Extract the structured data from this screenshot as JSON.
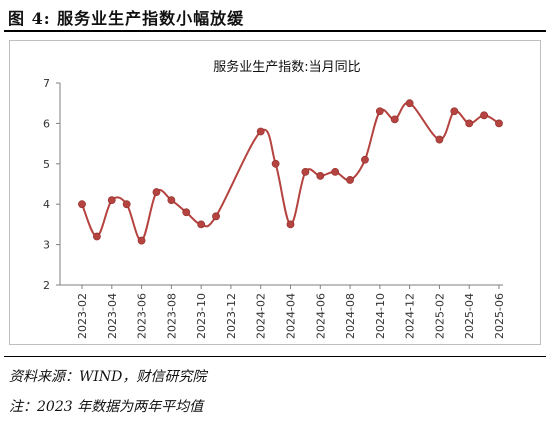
{
  "figure": {
    "title": "图 4:  服务业生产指数小幅放缓",
    "source": "资料来源：WIND，财信研究院",
    "note": "注：2023 年数据为两年平均值"
  },
  "chart_data": {
    "type": "line",
    "title": "服务业生产指数:当月同比",
    "xlabel": "",
    "ylabel": "",
    "ylim": [
      2,
      7
    ],
    "yticks": [
      2,
      3,
      4,
      5,
      6,
      7
    ],
    "grid": false,
    "legend": "none",
    "line_color": "#b5433f",
    "marker_color": "#b5433f",
    "x": [
      "2023-02",
      "2023-03",
      "2023-04",
      "2023-05",
      "2023-06",
      "2023-07",
      "2023-08",
      "2023-09",
      "2023-10",
      "2023-11",
      "2023-12",
      "2024-01",
      "2024-02",
      "2024-03",
      "2024-04",
      "2024-05",
      "2024-06",
      "2024-07",
      "2024-08",
      "2024-09",
      "2024-10",
      "2024-11",
      "2024-12",
      "2025-01",
      "2025-02",
      "2025-03",
      "2025-04",
      "2025-05",
      "2025-06"
    ],
    "xtick_labels": [
      "2023-02",
      "2023-04",
      "2023-06",
      "2023-08",
      "2023-10",
      "2023-12",
      "2024-02",
      "2024-04",
      "2024-06",
      "2024-08",
      "2024-10",
      "2024-12",
      "2025-02",
      "2025-04",
      "2025-06"
    ],
    "series": [
      {
        "points": [
          {
            "x": "2023-02",
            "y": 4.0
          },
          {
            "x": "2023-03",
            "y": 3.2
          },
          {
            "x": "2023-04",
            "y": 4.1
          },
          {
            "x": "2023-05",
            "y": 4.0
          },
          {
            "x": "2023-06",
            "y": 3.1
          },
          {
            "x": "2023-07",
            "y": 4.3
          },
          {
            "x": "2023-08",
            "y": 4.1
          },
          {
            "x": "2023-09",
            "y": 3.8
          },
          {
            "x": "2023-10",
            "y": 3.5
          },
          {
            "x": "2023-11",
            "y": 3.7
          },
          {
            "x": "2024-02",
            "y": 5.8
          },
          {
            "x": "2024-03",
            "y": 5.0
          },
          {
            "x": "2024-04",
            "y": 3.5
          },
          {
            "x": "2024-05",
            "y": 4.8
          },
          {
            "x": "2024-06",
            "y": 4.7
          },
          {
            "x": "2024-07",
            "y": 4.8
          },
          {
            "x": "2024-08",
            "y": 4.6
          },
          {
            "x": "2024-09",
            "y": 5.1
          },
          {
            "x": "2024-10",
            "y": 6.3
          },
          {
            "x": "2024-11",
            "y": 6.1
          },
          {
            "x": "2024-12",
            "y": 6.5
          },
          {
            "x": "2025-02",
            "y": 5.6
          },
          {
            "x": "2025-03",
            "y": 6.3
          },
          {
            "x": "2025-04",
            "y": 6.0
          },
          {
            "x": "2025-05",
            "y": 6.2
          },
          {
            "x": "2025-06",
            "y": 6.0
          }
        ]
      }
    ]
  }
}
